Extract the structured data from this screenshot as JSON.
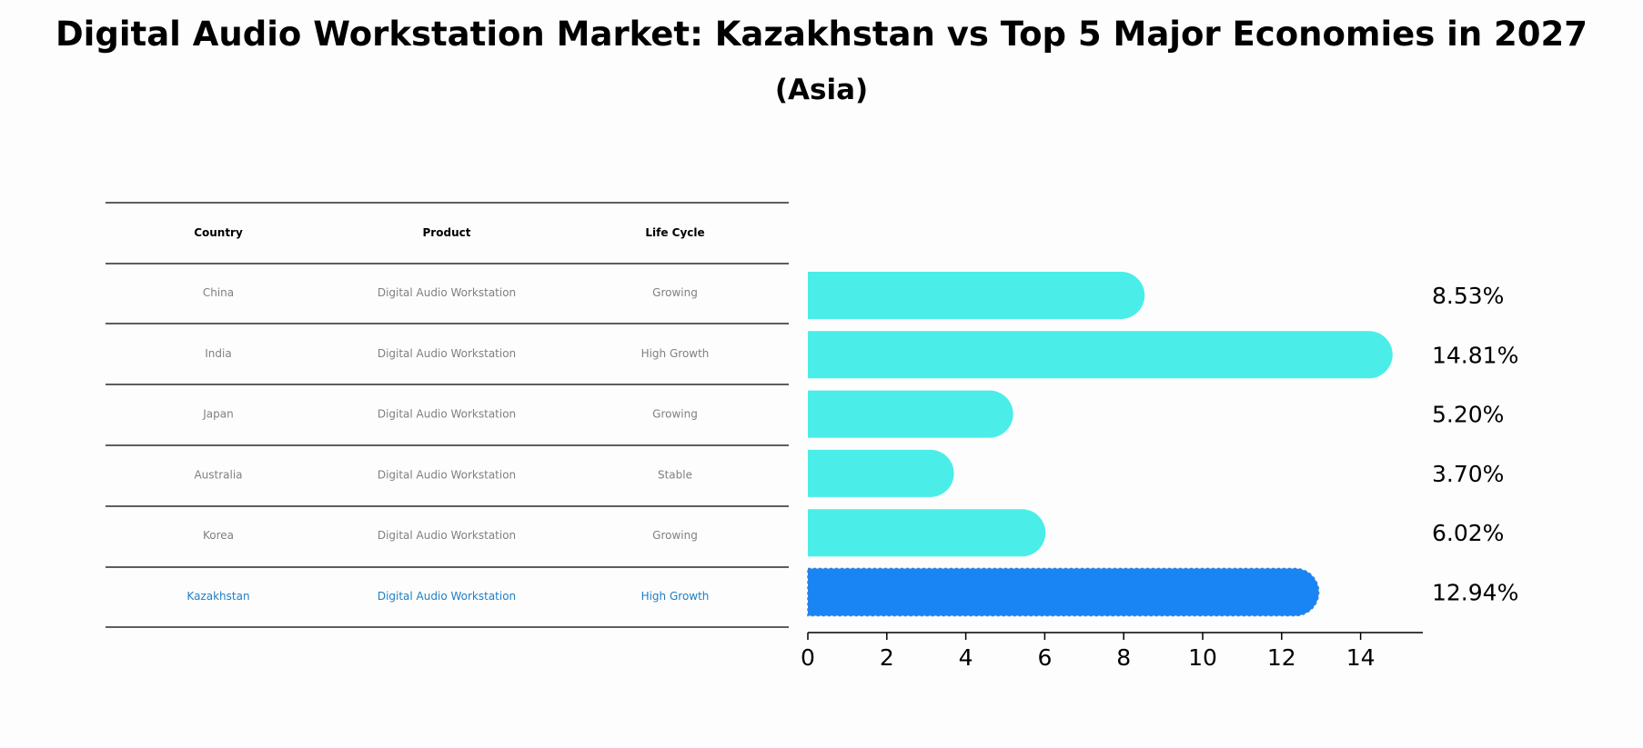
{
  "colors": {
    "bar": "#4bede8",
    "highlight": "#1985f5",
    "table_text": "#808080",
    "highlight_text": "#1f7ec6"
  },
  "chart_data": {
    "type": "bar",
    "orientation": "horizontal",
    "title": "Digital Audio Workstation Market: Kazakhstan vs Top 5 Major Economies in 2027",
    "subtitle": "(Asia)",
    "categories": [
      "China",
      "India",
      "Japan",
      "Australia",
      "Korea",
      "Kazakhstan"
    ],
    "values": [
      8.53,
      14.81,
      5.2,
      3.7,
      6.02,
      12.94
    ],
    "value_labels": [
      "8.53%",
      "14.81%",
      "5.20%",
      "3.70%",
      "6.02%",
      "12.94%"
    ],
    "highlight": "Kazakhstan",
    "xlim": [
      0,
      15.55
    ],
    "x_ticks": [
      "0",
      "2",
      "4",
      "6",
      "8",
      "10",
      "12",
      "14"
    ],
    "grid": false,
    "table": {
      "headers": [
        "Country",
        "Product",
        "Life Cycle"
      ],
      "rows": [
        [
          "China",
          "Digital Audio Workstation",
          "Growing"
        ],
        [
          "India",
          "Digital Audio Workstation",
          "High Growth"
        ],
        [
          "Japan",
          "Digital Audio Workstation",
          "Growing"
        ],
        [
          "Australia",
          "Digital Audio Workstation",
          "Stable"
        ],
        [
          "Korea",
          "Digital Audio Workstation",
          "Growing"
        ],
        [
          "Kazakhstan",
          "Digital Audio Workstation",
          "High Growth"
        ]
      ]
    }
  }
}
